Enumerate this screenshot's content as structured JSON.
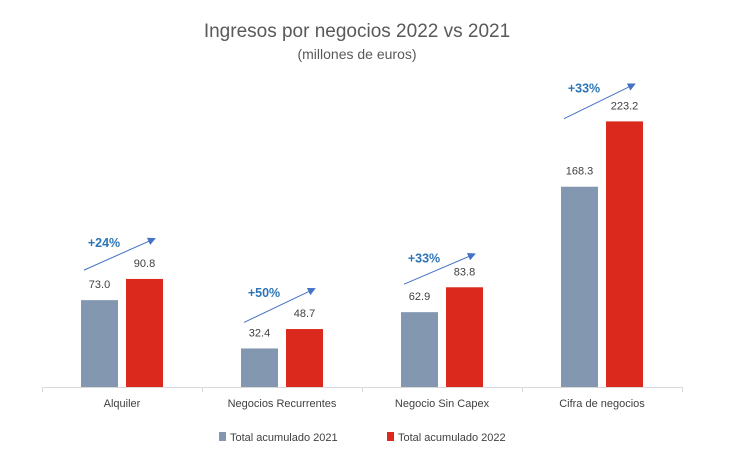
{
  "chart_data": {
    "type": "bar",
    "title": "Ingresos por negocios 2022 vs 2021",
    "subtitle": "(millones de euros)",
    "xlabel": "",
    "ylabel": "",
    "ylim": [
      0,
      225
    ],
    "grid": false,
    "legend_position": "bottom",
    "categories": [
      "Alquiler",
      "Negocios Recurrentes",
      "Negocio Sin Capex",
      "Cifra de negocios"
    ],
    "series": [
      {
        "name": "Total acumulado 2021",
        "color": "#8497b0",
        "values": [
          73.0,
          32.4,
          62.9,
          168.3
        ],
        "labels": [
          "73.0",
          "32.4",
          "62.9",
          "168.3"
        ]
      },
      {
        "name": "Total acumulado 2022",
        "color": "#dc291e",
        "values": [
          90.8,
          48.7,
          83.8,
          223.2
        ],
        "labels": [
          "90.8",
          "48.7",
          "83.8",
          "223.2"
        ]
      }
    ],
    "annotations": [
      "+24%",
      "+50%",
      "+33%",
      "+33%"
    ],
    "annotation_color": "#2e75b6",
    "arrow_color": "#4472c4"
  }
}
